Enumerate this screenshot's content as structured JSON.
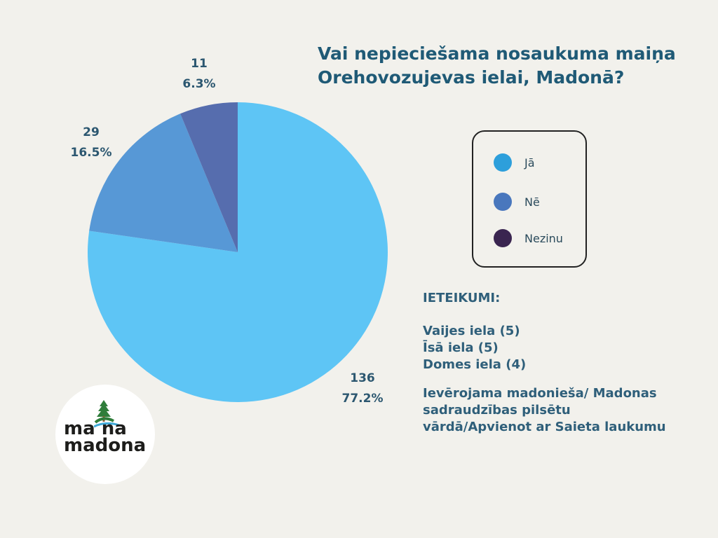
{
  "title": {
    "line1": "Vai nepieciešama nosaukuma maiņa",
    "line2": "Orehovozujevas ielai, Madonā?"
  },
  "chart_data": {
    "type": "pie",
    "title": "Vai nepieciešama nosaukuma maiņa Orehovozujevas ielai, Madonā?",
    "series": [
      {
        "name": "Jā",
        "count": 136,
        "percent": "77.2%",
        "color": "#5ec5f5"
      },
      {
        "name": "Nē",
        "count": 29,
        "percent": "16.5%",
        "color": "#5798d6"
      },
      {
        "name": "Nezinu",
        "count": 11,
        "percent": "6.3%",
        "color": "#566dae"
      }
    ],
    "legend_position": "right"
  },
  "legend": {
    "items": [
      {
        "label": "Jā",
        "color": "#2d9fdb"
      },
      {
        "label": "Nē",
        "color": "#4977bd"
      },
      {
        "label": "Nezinu",
        "color": "#3a2550"
      }
    ]
  },
  "suggestions": {
    "heading": "IETEIKUMI:",
    "items": [
      "Vaijes iela (5)",
      "Īsā iela (5)",
      "Domes iela (4)"
    ],
    "note_lines": [
      "Ievērojama madonieša/ Madonas",
      "sadraudzības pilsētu",
      "vārdā/Apvienot ar Saieta laukumu"
    ]
  },
  "logo": {
    "line1": "ma  na",
    "line2": "madona"
  }
}
